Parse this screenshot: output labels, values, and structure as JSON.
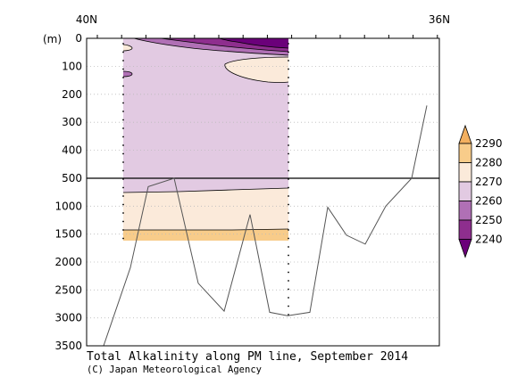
{
  "chart_data": {
    "type": "contour",
    "title": "Total Alkalinity along PM line, September 2014",
    "credit": "(C) Japan Meteorological Agency",
    "x_top_labels": [
      "40N",
      "36N"
    ],
    "y_unit": "(m)",
    "y_upper": {
      "range": [
        0,
        500
      ],
      "ticks": [
        0,
        100,
        200,
        300,
        400,
        500
      ]
    },
    "y_lower": {
      "range": [
        500,
        3500
      ],
      "ticks": [
        1000,
        1500,
        2000,
        2500,
        3000,
        3500
      ]
    },
    "colorbar": {
      "levels": [
        2240,
        2250,
        2260,
        2270,
        2280,
        2290
      ],
      "colors": [
        "#6b007a",
        "#8e2e8e",
        "#b070b5",
        "#e2cae2",
        "#fbeada",
        "#f8cc8a",
        "#f3b060"
      ]
    },
    "bottom_depth_m": [
      3500,
      2100,
      650,
      500,
      2380,
      2880,
      1150,
      2900,
      2960,
      2900,
      1020,
      1520,
      1680,
      1000,
      500,
      240
    ],
    "station_depth_m": [
      1620,
      2960
    ]
  }
}
